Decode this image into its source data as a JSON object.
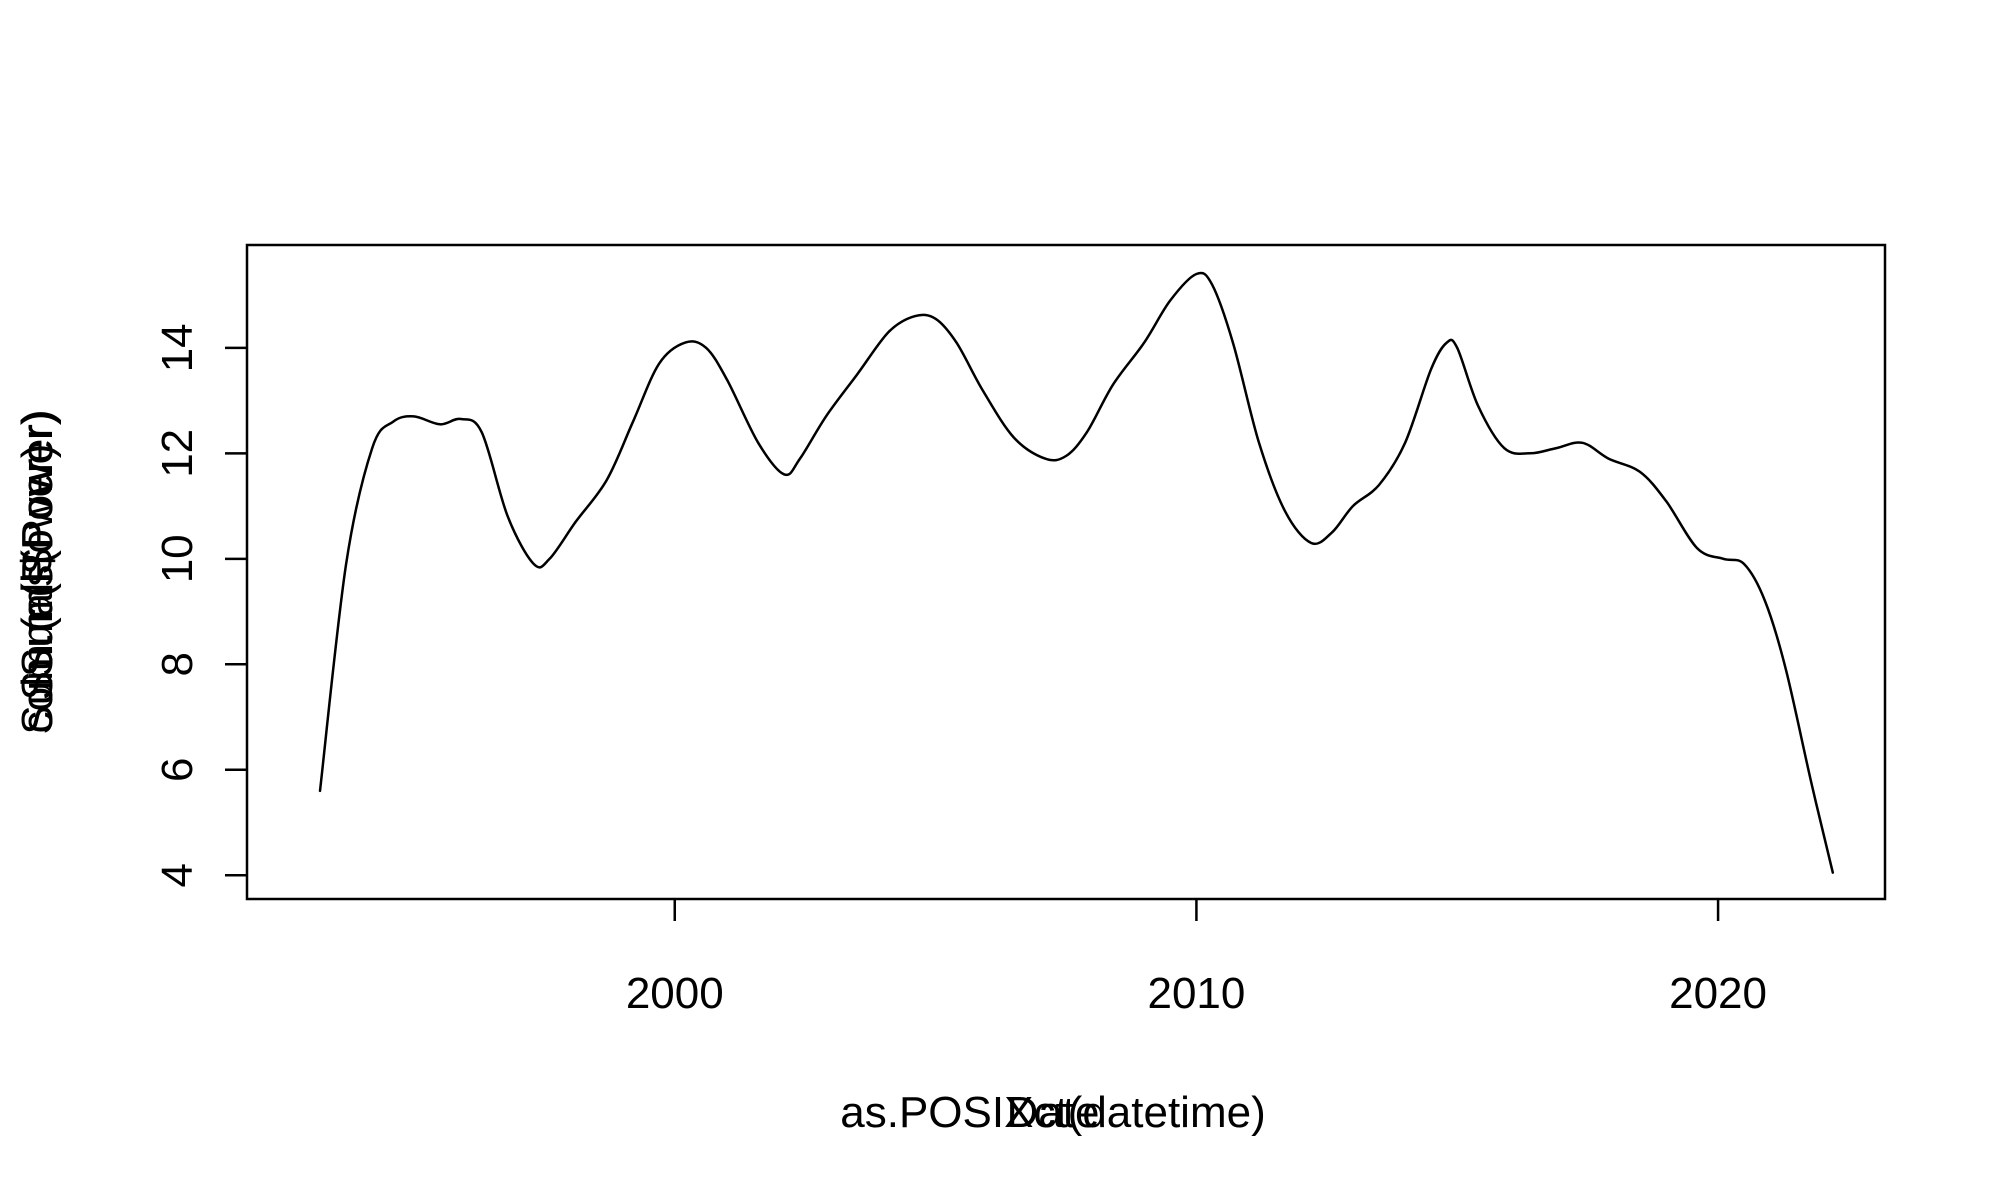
{
  "chart_data": {
    "type": "line",
    "xlabel_lines": [
      "as.POSIXct(datetime)",
      "Date"
    ],
    "ylabel_lines": [
      "colSums(Power)",
      "Sum.(Power)",
      "Sum.(all$Power)"
    ],
    "x_ticks": [
      "2000",
      "2010",
      "2020"
    ],
    "x_tick_values": [
      2000,
      2010,
      2020
    ],
    "y_ticks": [
      "4",
      "6",
      "8",
      "10",
      "12",
      "14"
    ],
    "y_tick_values": [
      4,
      6,
      8,
      10,
      12,
      14
    ],
    "xlim": [
      1991.8,
      2023.2
    ],
    "ylim": [
      3.55,
      15.95
    ],
    "grid": false,
    "legend": "none",
    "series": [
      {
        "color": "#000000",
        "x": [
          1993.2,
          1993.7,
          1994.2,
          1994.6,
          1995.0,
          1995.5,
          1995.9,
          1996.3,
          1996.8,
          1997.3,
          1997.6,
          1998.1,
          1998.7,
          1999.2,
          1999.7,
          2000.2,
          2000.6,
          2001.0,
          2001.6,
          2002.1,
          2002.4,
          2002.9,
          2003.5,
          2004.1,
          2004.6,
          2005.0,
          2005.4,
          2005.9,
          2006.5,
          2007.1,
          2007.5,
          2007.9,
          2008.4,
          2009.0,
          2009.5,
          2010.0,
          2010.3,
          2010.7,
          2011.2,
          2011.7,
          2012.2,
          2012.6,
          2013.0,
          2013.5,
          2014.0,
          2014.5,
          2014.8,
          2015.0,
          2015.4,
          2015.9,
          2016.4,
          2016.9,
          2017.4,
          2017.9,
          2018.5,
          2019.0,
          2019.6,
          2020.1,
          2020.5,
          2020.9,
          2021.3,
          2021.8,
          2022.2
        ],
        "y": [
          5.6,
          9.9,
          12.1,
          12.6,
          12.7,
          12.55,
          12.65,
          12.4,
          10.8,
          9.9,
          10.0,
          10.7,
          11.5,
          12.6,
          13.7,
          14.1,
          14.0,
          13.4,
          12.2,
          11.6,
          11.9,
          12.7,
          13.5,
          14.3,
          14.6,
          14.55,
          14.1,
          13.2,
          12.3,
          11.9,
          11.95,
          12.4,
          13.3,
          14.1,
          14.9,
          15.4,
          15.2,
          14.1,
          12.2,
          10.9,
          10.3,
          10.5,
          11.0,
          11.4,
          12.2,
          13.6,
          14.1,
          14.0,
          12.9,
          12.1,
          12.0,
          12.1,
          12.2,
          11.9,
          11.65,
          11.1,
          10.2,
          10.0,
          9.9,
          9.2,
          7.9,
          5.7,
          4.05
        ]
      }
    ]
  }
}
